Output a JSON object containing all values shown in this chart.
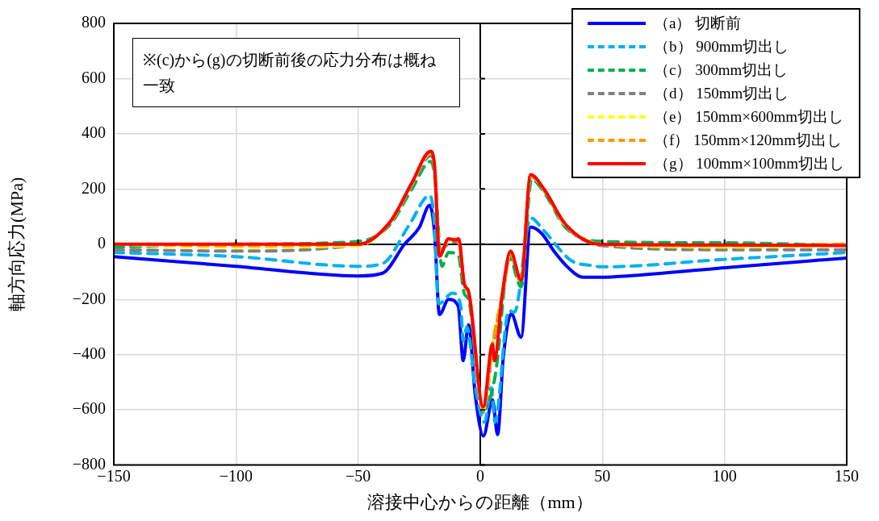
{
  "chart_data": {
    "type": "line",
    "xlabel": "溶接中心からの距離（mm）",
    "ylabel": "軸方向応力(MPa)",
    "xlim": [
      -150,
      150
    ],
    "ylim": [
      -800,
      800
    ],
    "xticks": [
      -150,
      -100,
      -50,
      0,
      50,
      100,
      150
    ],
    "yticks": [
      -800,
      -600,
      -400,
      -200,
      0,
      200,
      400,
      600,
      800
    ],
    "grid": true,
    "legend": "top right",
    "marker": "none",
    "annotations": [
      "※(c)から(g)の切断前後の応力分布は概ね一致"
    ],
    "series": [
      {
        "name": "（a） 切断前",
        "color": "#0000ff",
        "line_style": "solid",
        "x": [
          -150,
          -100,
          -50,
          -40,
          -31,
          -25,
          -20.7,
          -18.7,
          -16.7,
          -13,
          -9,
          -7,
          -4.8,
          -2,
          1.3,
          5,
          7.1,
          9.4,
          12.7,
          16.7,
          20.6,
          25,
          30.5,
          36,
          41.5,
          48,
          60,
          100,
          150
        ],
        "values": [
          -45,
          -80,
          -115,
          -105,
          0,
          60,
          141,
          40,
          -255,
          -200,
          -225,
          -422,
          -292,
          -550,
          -695,
          -564,
          -690,
          -413,
          -252,
          -337,
          62,
          40,
          -29,
          -85,
          -119,
          -120,
          -115,
          -85,
          -50
        ]
      },
      {
        "name": "（b） 900mm切出し",
        "color": "#00b0f0",
        "line_style": "dashed",
        "x": [
          -150,
          -100,
          -50,
          -40,
          -29,
          -20.7,
          -19,
          -17,
          -11.4,
          -8,
          -7,
          -5.5,
          -2,
          1.8,
          4.5,
          6,
          11.7,
          14,
          20.6,
          26,
          37,
          46,
          50,
          100,
          150
        ],
        "values": [
          -30,
          -45,
          -80,
          -70,
          71,
          177,
          100,
          -216,
          -177,
          -222,
          -350,
          -300,
          -520,
          -645,
          -520,
          -645,
          -240,
          -246,
          95,
          50,
          -58,
          -78,
          -82,
          -55,
          -30
        ]
      },
      {
        "name": "（c） 300mm切出し",
        "color": "#00b050",
        "line_style": "dashed",
        "x": [
          -150,
          -100,
          -50,
          -37,
          -28,
          -20.3,
          -18.7,
          -15.7,
          -13,
          -9,
          -6.5,
          -4.8,
          1.2,
          6,
          12,
          16.7,
          21,
          26,
          35,
          50,
          100,
          150
        ],
        "values": [
          -10,
          0,
          10,
          70,
          200,
          300,
          250,
          -80,
          -30,
          -40,
          -180,
          -200,
          -600,
          -483,
          -50,
          -155,
          235,
          190,
          60,
          10,
          5,
          -5
        ]
      },
      {
        "name": "（d） 150mm切出し",
        "color": "#808080",
        "line_style": "dashed",
        "x": [
          -150,
          -100,
          -50,
          -37,
          -28,
          -20.3,
          -18.7,
          -16.7,
          -13,
          -9,
          -6.5,
          -4.8,
          1.2,
          5,
          9,
          12.4,
          16.7,
          20.6,
          26,
          35,
          50,
          100,
          150
        ],
        "values": [
          -20,
          -25,
          0,
          75,
          215,
          320,
          270,
          -20,
          0,
          10,
          -150,
          -175,
          -610,
          -380,
          -190,
          -40,
          -140,
          245,
          195,
          65,
          -5,
          -20,
          -20
        ]
      },
      {
        "name": "（e） 150mm×600mm切出し",
        "color": "#ffff00",
        "line_style": "dashed",
        "x": [
          -150,
          -100,
          -50,
          -37,
          -28,
          -20.3,
          -18.7,
          -16.7,
          -13,
          -9,
          -6.5,
          -4.8,
          1.2,
          5,
          9,
          12.4,
          16.7,
          20.6,
          26,
          35,
          50,
          100,
          150
        ],
        "values": [
          0,
          -10,
          -5,
          78,
          218,
          330,
          275,
          -35,
          15,
          15,
          -148,
          -172,
          -600,
          -370,
          -185,
          -30,
          -135,
          248,
          198,
          68,
          0,
          -10,
          -5
        ]
      },
      {
        "name": "（f） 150mm×120mm切出し",
        "color": "#ff9900",
        "line_style": "dashed",
        "x": [
          -150,
          -100,
          -50,
          -37,
          -28,
          -20.3,
          -18.7,
          -16.7,
          -13,
          -9,
          -6.5,
          -4.8,
          1.2,
          5,
          9,
          12.4,
          16.7,
          20.6,
          26,
          35,
          50,
          100,
          150
        ],
        "values": [
          0,
          -5,
          0,
          80,
          220,
          335,
          278,
          -40,
          18,
          18,
          -146,
          -171,
          -595,
          -365,
          -183,
          -28,
          -133,
          250,
          200,
          70,
          0,
          -5,
          0
        ]
      },
      {
        "name": "（g） 100mm×100mm切出し",
        "color": "#ff0000",
        "line_style": "solid",
        "x": [
          -150,
          -100,
          -50,
          -37,
          -28,
          -20.3,
          -18.7,
          -16.7,
          -13,
          -10,
          -8.8,
          -6.5,
          -4.8,
          1.2,
          5,
          5.8,
          9,
          12.4,
          16.7,
          20.6,
          26,
          35,
          49,
          100,
          150
        ],
        "values": [
          0,
          0,
          0,
          80,
          222,
          337,
          282,
          -44,
          20,
          15,
          20,
          -146,
          -171,
          -589,
          -362,
          -422,
          -181,
          -25,
          -131,
          252,
          201,
          71,
          0,
          -3,
          -5
        ]
      }
    ]
  }
}
